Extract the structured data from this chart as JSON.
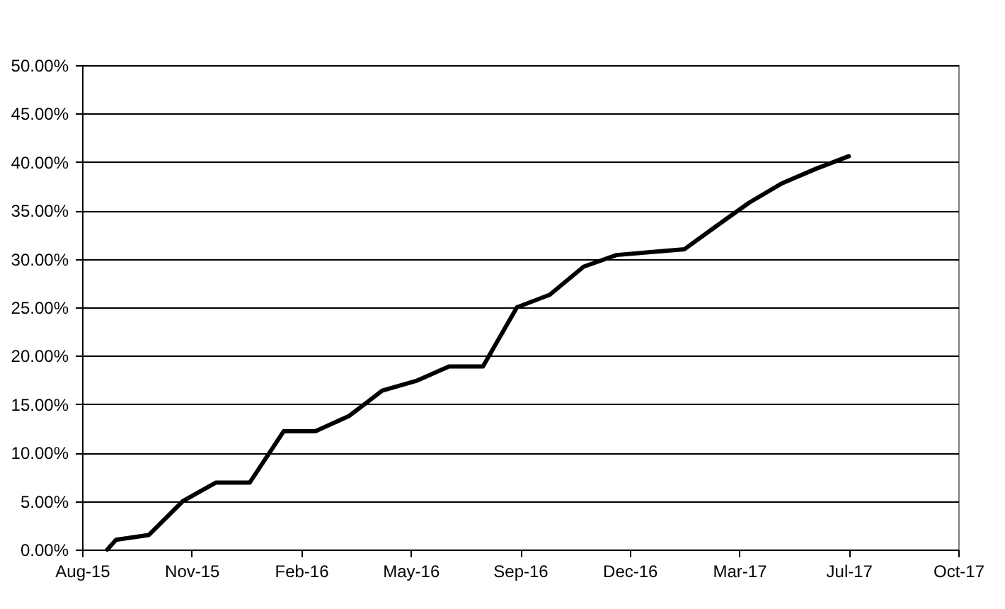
{
  "chart_data": {
    "type": "line",
    "x": [
      "2015-08-24",
      "2015-09-01",
      "2015-10-01",
      "2015-11-01",
      "2015-12-01",
      "2016-01-01",
      "2016-02-01",
      "2016-03-01",
      "2016-04-01",
      "2016-05-01",
      "2016-06-01",
      "2016-07-01",
      "2016-08-01",
      "2016-09-01",
      "2016-10-01",
      "2016-11-01",
      "2016-12-01",
      "2017-01-01",
      "2017-02-01",
      "2017-03-01",
      "2017-04-01",
      "2017-05-01",
      "2017-06-01",
      "2017-07-01"
    ],
    "series": [
      {
        "color": "#000000",
        "values": [
          0,
          1.0,
          1.5,
          5.0,
          6.9,
          6.9,
          12.2,
          12.2,
          13.8,
          16.4,
          17.4,
          18.9,
          18.9,
          25.0,
          26.3,
          29.2,
          30.4,
          30.7,
          31.0,
          33.3,
          35.8,
          37.8,
          39.3,
          40.6
        ]
      }
    ],
    "xlim": [
      "2015-08-01",
      "2017-10-09"
    ],
    "xticks": [
      {
        "value": "2015-08-01",
        "label": "Aug-15"
      },
      {
        "value": "2015-11-09",
        "label": "Nov-15"
      },
      {
        "value": "2016-02-17",
        "label": "Feb-16"
      },
      {
        "value": "2016-05-27",
        "label": "May-16"
      },
      {
        "value": "2016-09-04",
        "label": "Sep-16"
      },
      {
        "value": "2016-12-13",
        "label": "Dec-16"
      },
      {
        "value": "2017-03-23",
        "label": "Mar-17"
      },
      {
        "value": "2017-07-01",
        "label": "Jul-17"
      },
      {
        "value": "2017-10-09",
        "label": "Oct-17"
      }
    ],
    "ylim": [
      0,
      50
    ],
    "yticks": [
      {
        "value": 0,
        "label": "0.00%"
      },
      {
        "value": 5,
        "label": "5.00%"
      },
      {
        "value": 10,
        "label": "10.00%"
      },
      {
        "value": 15,
        "label": "15.00%"
      },
      {
        "value": 20,
        "label": "20.00%"
      },
      {
        "value": 25,
        "label": "25.00%"
      },
      {
        "value": 30,
        "label": "30.00%"
      },
      {
        "value": 35,
        "label": "35.00%"
      },
      {
        "value": 40,
        "label": "40.00%"
      },
      {
        "value": 45,
        "label": "45.00%"
      },
      {
        "value": 50,
        "label": "50.00%"
      }
    ],
    "grid": "y"
  }
}
